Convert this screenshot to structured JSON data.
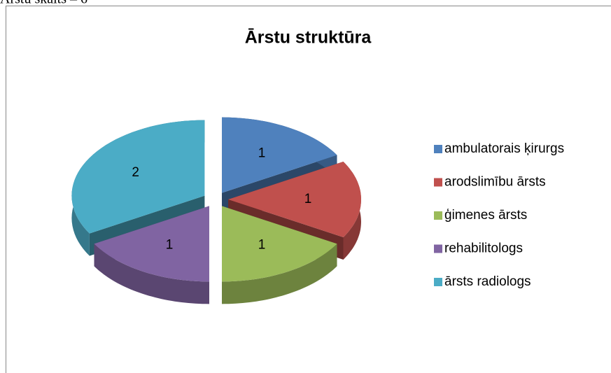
{
  "heading": "Ārstu skaits – 6",
  "chart_data": {
    "type": "pie3d",
    "title": "Ārstu struktūra",
    "categories": [
      "ambulatorais ķirurgs",
      "arodslimību ārsts",
      "ģimenes ārsts",
      "rehabilitologs",
      "ārsts radiologs"
    ],
    "values": [
      1,
      1,
      1,
      1,
      2
    ],
    "colors": [
      "#4f81bd",
      "#c0504d",
      "#9bbb59",
      "#8064a2",
      "#4bacc6"
    ],
    "legend": "right"
  }
}
